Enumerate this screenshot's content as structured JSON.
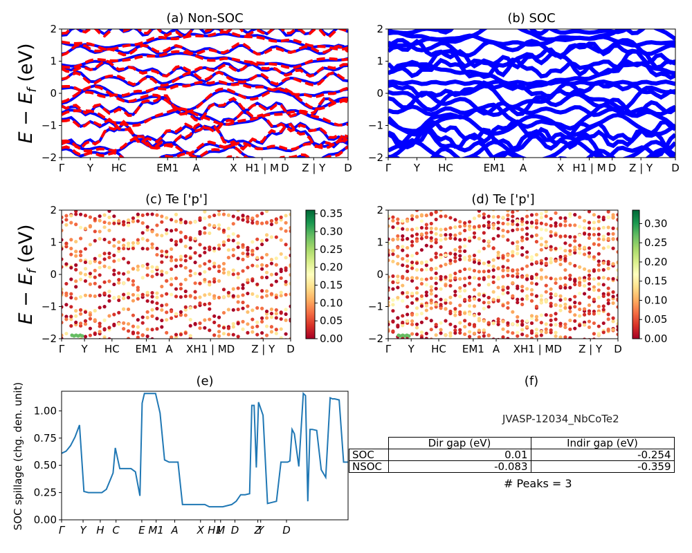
{
  "colors": {
    "nsoc_line": "#ff0000",
    "soc_line": "#0000ff",
    "spillage_line": "#1f77b4",
    "cmap": [
      "#a50026",
      "#d73027",
      "#f46d43",
      "#fdae61",
      "#fee08b",
      "#ffffbf",
      "#d9ef8b",
      "#a6d96a",
      "#66bd63",
      "#1a9850",
      "#006837"
    ]
  },
  "chart_data": [
    {
      "id": "a",
      "type": "line",
      "title": "(a) Non-SOC",
      "ylabel": "E − E_f (eV)",
      "ylim": [
        -2,
        2
      ],
      "yticks": [
        "2",
        "1",
        "0",
        "−1",
        "−2"
      ],
      "xticks": [
        "Γ",
        "Y",
        "HC",
        "EM1",
        "A",
        "X",
        "H1 | M",
        "D",
        "Z | Y",
        "D"
      ],
      "series": [
        {
          "style": "solid",
          "color": "blue",
          "n_bands": 16
        },
        {
          "style": "dashed",
          "color": "red",
          "n_bands": 16
        }
      ]
    },
    {
      "id": "b",
      "type": "line",
      "title": "(b) SOC",
      "ylim": [
        -2,
        2
      ],
      "yticks": [
        "2",
        "1",
        "0",
        "−1",
        "−2"
      ],
      "xticks": [
        "Γ",
        "Y",
        "HC",
        "EM1",
        "A",
        "X",
        "H1 | M",
        "D",
        "Z | Y",
        "D"
      ],
      "series": [
        {
          "style": "solid",
          "color": "blue",
          "n_bands": 22
        }
      ]
    },
    {
      "id": "c",
      "type": "scatter",
      "title": "(c)  Te ['p']",
      "ylabel": "E − E_f (eV)",
      "ylim": [
        -2,
        2
      ],
      "yticks": [
        "2",
        "1",
        "0",
        "−1",
        "−2"
      ],
      "xticks": [
        "Γ",
        "Y",
        "HC",
        "EM1",
        "A",
        "XH1 | MD",
        "Z | Y",
        "D"
      ],
      "colorbar": {
        "ticks": [
          "0.35",
          "0.30",
          "0.25",
          "0.20",
          "0.15",
          "0.10",
          "0.05",
          "0.00"
        ],
        "max": 0.36
      }
    },
    {
      "id": "d",
      "type": "scatter",
      "title": "(d) Te ['p']",
      "ylim": [
        -2,
        2
      ],
      "yticks": [
        "2",
        "1",
        "0",
        "−1",
        "−2"
      ],
      "xticks": [
        "Γ",
        "Y",
        "HC",
        "EM1",
        "A",
        "XH1 | MD",
        "Z | Y",
        "D"
      ],
      "colorbar": {
        "ticks": [
          "0.30",
          "0.25",
          "0.20",
          "0.15",
          "0.10",
          "0.05",
          "0.00"
        ],
        "max": 0.335
      }
    },
    {
      "id": "e",
      "type": "line",
      "title": "(e)",
      "ylabel": "SOC spillage (chg. den. unit)",
      "ylim": [
        0,
        1.18
      ],
      "yticks": [
        "1.00",
        "0.75",
        "0.50",
        "0.25",
        "0.00"
      ],
      "xticks": [
        "Γ",
        "Y",
        "H",
        "C",
        "E",
        "M1",
        "A",
        "X",
        "H1",
        "M",
        "D",
        "Z",
        "Y",
        "D"
      ],
      "x": [
        0,
        2,
        4,
        6,
        8,
        10,
        12,
        14,
        16,
        18,
        20,
        22,
        23,
        24,
        26,
        27,
        28,
        29,
        30,
        31,
        33,
        35,
        36,
        37,
        38,
        40,
        42,
        44,
        46,
        48,
        50,
        52,
        54,
        56,
        58,
        60,
        62,
        64,
        65,
        66,
        67,
        68,
        70,
        72,
        74,
        76,
        78,
        80,
        82,
        84,
        85,
        86,
        87,
        88,
        90,
        92,
        94,
        96,
        98,
        99,
        100,
        101,
        102,
        103,
        104,
        106,
        108,
        109,
        110,
        111,
        112,
        114,
        116,
        118,
        120,
        121,
        122,
        124,
        126,
        128
      ],
      "values": [
        0.61,
        0.63,
        0.68,
        0.76,
        0.87,
        0.26,
        0.25,
        0.25,
        0.25,
        0.25,
        0.28,
        0.38,
        0.43,
        0.66,
        0.47,
        0.47,
        0.47,
        0.47,
        0.47,
        0.47,
        0.44,
        0.22,
        1.07,
        1.16,
        1.16,
        1.16,
        1.16,
        0.98,
        0.55,
        0.53,
        0.53,
        0.53,
        0.14,
        0.14,
        0.14,
        0.14,
        0.14,
        0.14,
        0.13,
        0.12,
        0.12,
        0.12,
        0.12,
        0.12,
        0.13,
        0.14,
        0.17,
        0.23,
        0.23,
        0.24,
        1.05,
        1.05,
        0.48,
        1.08,
        0.96,
        0.15,
        0.16,
        0.17,
        0.53,
        0.53,
        0.53,
        0.53,
        0.54,
        0.83,
        0.79,
        0.49,
        1.16,
        1.14,
        0.17,
        0.83,
        0.83,
        0.82,
        0.46,
        0.39,
        1.12,
        1.11,
        1.11,
        1.1,
        0.53,
        0.53
      ]
    },
    {
      "id": "f",
      "type": "table",
      "title": "(f)",
      "material": "JVASP-12034_NbCoTe2",
      "columns": [
        "",
        "Dir gap (eV)",
        "Indir gap (eV)"
      ],
      "rows": [
        [
          "SOC",
          "0.01",
          "-0.254"
        ],
        [
          "NSOC",
          "-0.083",
          "-0.359"
        ]
      ],
      "peaks_text": "# Peaks = 3"
    }
  ]
}
